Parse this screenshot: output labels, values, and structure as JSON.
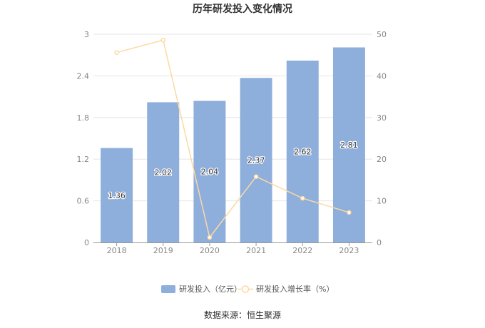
{
  "chart_data": {
    "type": "bar",
    "title": "历年研发投入变化情况",
    "categories": [
      "2018",
      "2019",
      "2020",
      "2021",
      "2022",
      "2023"
    ],
    "series": [
      {
        "name": "研发投入（亿元）",
        "type": "bar",
        "axis": "left",
        "values": [
          1.36,
          2.02,
          2.04,
          2.37,
          2.62,
          2.81
        ],
        "color": "#8eaedb"
      },
      {
        "name": "研发投入增长率（%）",
        "type": "line",
        "axis": "right",
        "values": [
          45.6,
          48.6,
          1.2,
          15.8,
          10.6,
          7.2
        ],
        "color": "#fcd9a3"
      }
    ],
    "y_left": {
      "min": 0,
      "max": 3,
      "ticks": [
        "0",
        "0.6",
        "1.2",
        "1.8",
        "2.4",
        "3"
      ]
    },
    "y_right": {
      "min": 0,
      "max": 50,
      "ticks": [
        "0",
        "10",
        "20",
        "30",
        "40",
        "50"
      ]
    },
    "data_labels": [
      "1.36",
      "2.02",
      "2.04",
      "2.37",
      "2.62",
      "2.81"
    ],
    "grid": true,
    "legend_position": "bottom"
  },
  "source": "数据来源：恒生聚源"
}
